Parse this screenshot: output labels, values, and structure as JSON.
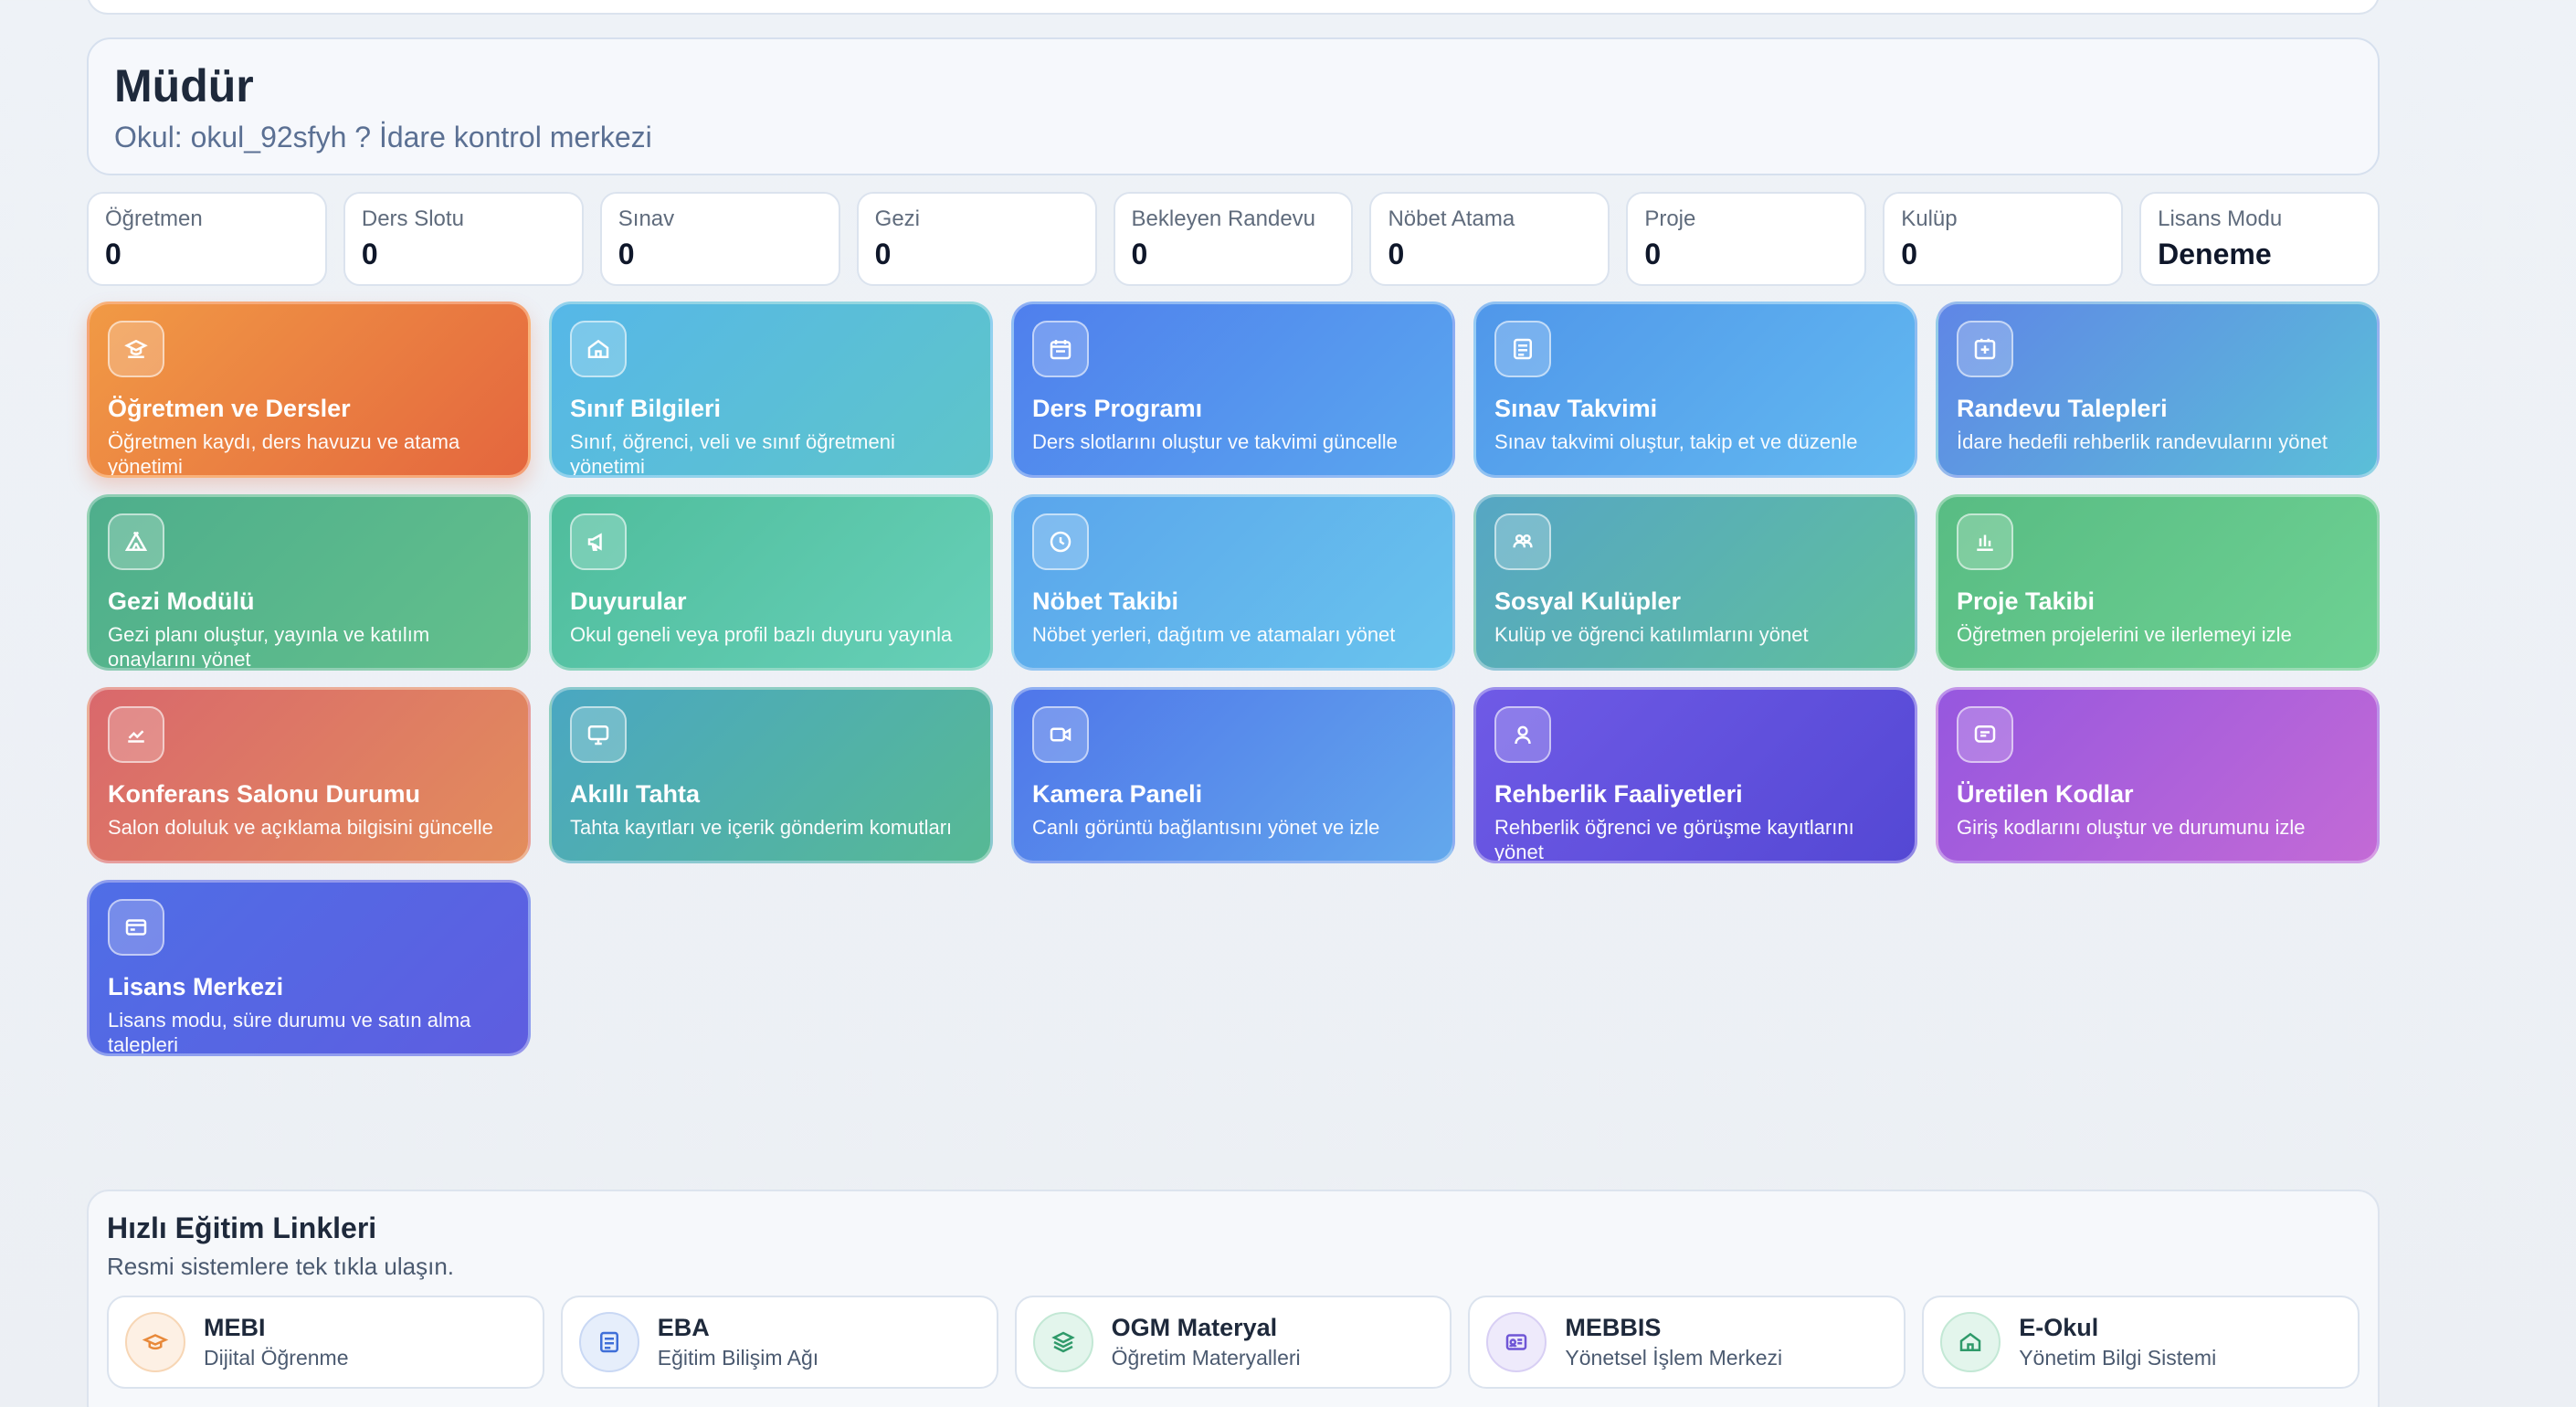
{
  "header": {
    "title": "Müdür",
    "subtitle": "Okul: okul_92sfyh ? İdare kontrol merkezi"
  },
  "stats": [
    {
      "label": "Öğretmen",
      "value": "0"
    },
    {
      "label": "Ders Slotu",
      "value": "0"
    },
    {
      "label": "Sınav",
      "value": "0"
    },
    {
      "label": "Gezi",
      "value": "0"
    },
    {
      "label": "Bekleyen Randevu",
      "value": "0"
    },
    {
      "label": "Nöbet Atama",
      "value": "0"
    },
    {
      "label": "Proje",
      "value": "0"
    },
    {
      "label": "Kulüp",
      "value": "0"
    },
    {
      "label": "Lisans Modu",
      "value": "Deneme"
    }
  ],
  "modules": [
    {
      "title": "Öğretmen ve Dersler",
      "desc": "Öğretmen kaydı, ders havuzu ve atama yönetimi",
      "icon": "teacher-icon"
    },
    {
      "title": "Sınıf Bilgileri",
      "desc": "Sınıf, öğrenci, veli ve sınıf öğretmeni yönetimi",
      "icon": "home-icon"
    },
    {
      "title": "Ders Programı",
      "desc": "Ders slotlarını oluştur ve takvimi güncelle",
      "icon": "calendar-icon"
    },
    {
      "title": "Sınav Takvimi",
      "desc": "Sınav takvimi oluştur, takip et ve düzenle",
      "icon": "document-icon"
    },
    {
      "title": "Randevu Talepleri",
      "desc": "İdare hedefli rehberlik randevularını yönet",
      "icon": "plus-square-icon"
    },
    {
      "title": "Gezi Modülü",
      "desc": "Gezi planı oluştur, yayınla ve katılım onaylarını yönet",
      "icon": "tent-icon"
    },
    {
      "title": "Duyurular",
      "desc": "Okul geneli veya profil bazlı duyuru yayınla",
      "icon": "megaphone-icon"
    },
    {
      "title": "Nöbet Takibi",
      "desc": "Nöbet yerleri, dağıtım ve atamaları yönet",
      "icon": "clock-icon"
    },
    {
      "title": "Sosyal Kulüpler",
      "desc": "Kulüp ve öğrenci katılımlarını yönet",
      "icon": "users-icon"
    },
    {
      "title": "Proje Takibi",
      "desc": "Öğretmen projelerini ve ilerlemeyi izle",
      "icon": "bar-chart-icon"
    },
    {
      "title": "Konferans Salonu Durumu",
      "desc": "Salon doluluk ve açıklama bilgisini güncelle",
      "icon": "chart-line-icon"
    },
    {
      "title": "Akıllı Tahta",
      "desc": "Tahta kayıtları ve içerik gönderim komutları",
      "icon": "monitor-icon"
    },
    {
      "title": "Kamera Paneli",
      "desc": "Canlı görüntü bağlantısını yönet ve izle",
      "icon": "video-icon"
    },
    {
      "title": "Rehberlik Faaliyetleri",
      "desc": "Rehberlik öğrenci ve görüşme kayıtlarını yönet",
      "icon": "user-icon"
    },
    {
      "title": "Üretilen Kodlar",
      "desc": "Giriş kodlarını oluştur ve durumunu izle",
      "icon": "message-icon"
    },
    {
      "title": "Lisans Merkezi",
      "desc": "Lisans modu, süre durumu ve satın alma talepleri",
      "icon": "credit-card-icon"
    }
  ],
  "quick_links": {
    "title": "Hızlı Eğitim Linkleri",
    "subtitle": "Resmi sistemlere tek tıkla ulaşın.",
    "items": [
      {
        "name": "MEBI",
        "desc": "Dijital Öğrenme",
        "icon": "graduation-cap-icon",
        "color": "#e8893a",
        "bg": "#fdf0e4"
      },
      {
        "name": "EBA",
        "desc": "Eğitim Bilişim Ağı",
        "icon": "document-icon",
        "color": "#3f6fd8",
        "bg": "#e6eefb"
      },
      {
        "name": "OGM Materyal",
        "desc": "Öğretim Materyalleri",
        "icon": "layers-icon",
        "color": "#2f9a6a",
        "bg": "#e3f5ec"
      },
      {
        "name": "MEBBIS",
        "desc": "Yönetsel İşlem Merkezi",
        "icon": "id-card-icon",
        "color": "#6f56d6",
        "bg": "#eeeafb"
      },
      {
        "name": "E-Okul",
        "desc": "Yönetim Bilgi Sistemi",
        "icon": "home-icon",
        "color": "#2f9a6a",
        "bg": "#e3f5ec"
      }
    ]
  }
}
